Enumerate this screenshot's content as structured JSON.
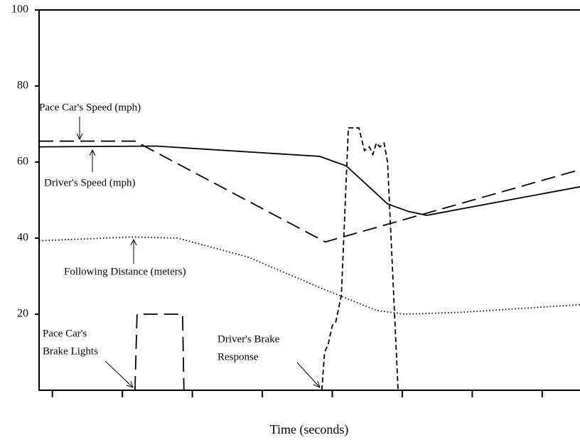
{
  "chart_data": {
    "type": "line",
    "x_label": "Time (seconds)",
    "xlim": [
      -0.19,
      7.54
    ],
    "xticks": [
      0,
      1,
      2,
      3,
      4,
      5,
      6,
      7
    ],
    "ylim": [
      0,
      100
    ],
    "yticks": [
      20,
      40,
      60,
      80,
      100
    ],
    "series": [
      {
        "color": "#000000",
        "style": "dashed",
        "x": [
          -0.19,
          1.18,
          3.9,
          7.54
        ],
        "values": [
          65.5,
          65.5,
          39,
          58
        ]
      },
      {
        "color": "#000000",
        "style": "solid",
        "x": [
          -0.19,
          1.48,
          3.82,
          4.2,
          4.79,
          5.09,
          5.35,
          7.54
        ],
        "values": [
          64,
          64.2,
          61.5,
          59,
          49,
          47,
          46,
          53.5
        ]
      },
      {
        "color": "#000000",
        "style": "dotted",
        "x": [
          -0.19,
          1.13,
          1.79,
          2.8,
          3.82,
          4.63,
          5.04,
          5.85,
          7.54
        ],
        "values": [
          39.3,
          40.3,
          40,
          35,
          27,
          21,
          20,
          20.5,
          22.5
        ]
      },
      {
        "color": "#000000",
        "style": "dashed",
        "x": [
          1.18,
          1.21,
          1.86,
          1.88
        ],
        "values": [
          0,
          20,
          20,
          0
        ]
      },
      {
        "color": "#000000",
        "style": "short-dashed",
        "x": [
          3.85,
          3.89,
          3.94,
          4.0,
          4.05,
          4.13,
          4.23,
          4.38,
          4.46,
          4.53,
          4.58,
          4.63,
          4.68,
          4.74,
          4.79,
          4.94
        ],
        "values": [
          0,
          10,
          12,
          17,
          18,
          25,
          69,
          69,
          63,
          64,
          62,
          65,
          64,
          65,
          60,
          0
        ]
      }
    ],
    "annotations": [
      {
        "text": [
          "Pace Car's Speed (mph)"
        ]
      },
      {
        "text": [
          "Driver's Speed (mph)"
        ]
      },
      {
        "text": [
          "Following Distance (meters)"
        ]
      },
      {
        "text": [
          "Pace Car's",
          "Brake Lights"
        ]
      },
      {
        "text": [
          "Driver's Brake",
          "Response"
        ]
      }
    ]
  }
}
